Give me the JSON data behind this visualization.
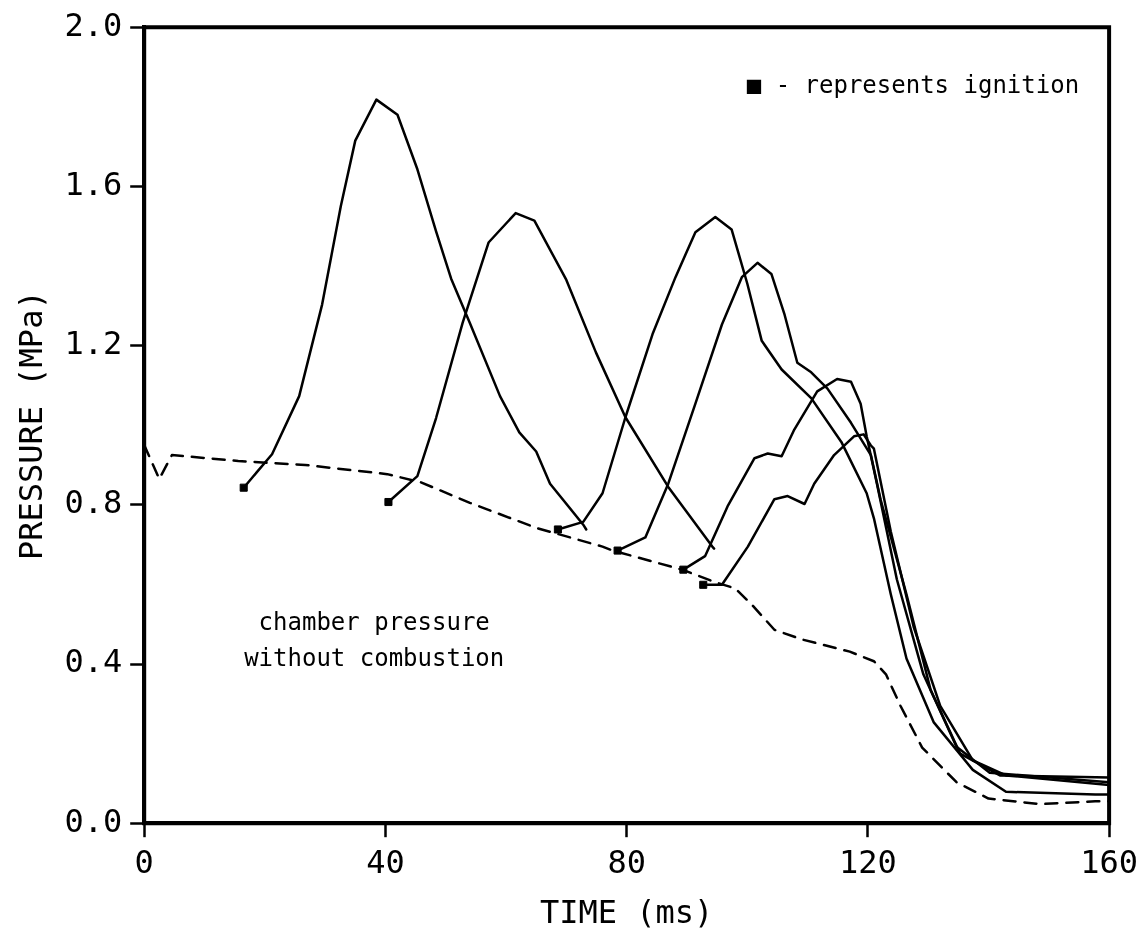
{
  "chart_data": {
    "type": "line",
    "xlabel": "TIME (ms)",
    "ylabel": "PRESSURE (MPa)",
    "xlim": [
      0,
      160
    ],
    "xticks": [
      0,
      40,
      80,
      120,
      160
    ],
    "ylim": [
      0,
      2.0
    ],
    "yticks": [
      {
        "value": 0,
        "label": "0.0"
      },
      {
        "value": 0.4,
        "label": "0.4"
      },
      {
        "value": 0.8,
        "label": "0.8"
      },
      {
        "value": 1.2,
        "label": "1.2"
      },
      {
        "value": 1.6,
        "label": "1.6"
      },
      {
        "value": 2.0,
        "label": "2.0"
      }
    ],
    "grid": false,
    "legend": false,
    "marker": "none",
    "annotations": [
      "■ - represents ignition",
      "chamber pressure\nwithout combustion"
    ],
    "series": [
      {
        "type": "line",
        "color": "#000000",
        "line_style": "dashed",
        "x": [
          0,
          2.5,
          4.6,
          15.6,
          26.7,
          40.3,
          45.8,
          54,
          65,
          76,
          77.7,
          89.2,
          94.6,
          98,
          100.7,
          104.5,
          109,
          117,
          121,
          123,
          125.4,
          129,
          134.7,
          140,
          148.5,
          157.7,
          160
        ],
        "values": [
          0.95,
          0.865,
          0.925,
          0.91,
          0.9,
          0.877,
          0.857,
          0.805,
          0.742,
          0.695,
          0.685,
          0.637,
          0.606,
          0.59,
          0.55,
          0.486,
          0.462,
          0.431,
          0.407,
          0.374,
          0.295,
          0.19,
          0.103,
          0.062,
          0.048,
          0.055,
          0.055
        ]
      },
      {
        "type": "line",
        "color": "#000000",
        "line_style": "solid",
        "x": [
          16.5,
          21.2,
          25.7,
          29.5,
          32.6,
          35,
          38.5,
          42,
          45.3,
          48.4,
          50.9,
          54,
          59,
          62.2,
          65,
          67.3,
          72.8,
          73.3
        ],
        "values": [
          0.843,
          0.927,
          1.073,
          1.303,
          1.55,
          1.715,
          1.818,
          1.78,
          1.643,
          1.487,
          1.368,
          1.257,
          1.073,
          0.982,
          0.934,
          0.853,
          0.75,
          0.738
        ]
      },
      {
        "type": "line",
        "color": "#000000",
        "line_style": "solid",
        "x": [
          40.5,
          45.3,
          48.4,
          52.8,
          57.1,
          61.6,
          64.7,
          70,
          74.9,
          79.8,
          86.9,
          94.2,
          94.5
        ],
        "values": [
          0.807,
          0.872,
          1.018,
          1.257,
          1.459,
          1.533,
          1.514,
          1.365,
          1.183,
          1.02,
          0.845,
          0.695,
          0.69
        ]
      },
      {
        "type": "line",
        "color": "#000000",
        "line_style": "solid",
        "x": [
          68.6,
          72.8,
          76,
          79.8,
          84.3,
          88.1,
          91.4,
          94.7,
          97.4,
          100,
          102.4,
          105.7,
          110.6,
          115.6,
          119.8,
          121,
          123.8,
          126.4,
          130.9,
          137.4,
          142.9,
          157.7,
          160
        ],
        "values": [
          0.738,
          0.757,
          0.829,
          1.02,
          1.229,
          1.372,
          1.485,
          1.523,
          1.492,
          1.356,
          1.212,
          1.14,
          1.068,
          0.958,
          0.829,
          0.766,
          0.575,
          0.414,
          0.254,
          0.134,
          0.079,
          0.072,
          0.072
        ]
      },
      {
        "type": "line",
        "color": "#000000",
        "line_style": "solid",
        "x": [
          78.5,
          83.1,
          86.9,
          91.4,
          95.8,
          99.1,
          101.7,
          104,
          106.2,
          108.3,
          110.6,
          113.3,
          117.2,
          120.5,
          122.1,
          126.4,
          130.4,
          135.3,
          141.9,
          160
        ],
        "values": [
          0.685,
          0.718,
          0.853,
          1.054,
          1.253,
          1.372,
          1.408,
          1.38,
          1.277,
          1.157,
          1.133,
          1.092,
          1.006,
          0.925,
          0.814,
          0.575,
          0.335,
          0.175,
          0.12,
          0.115
        ]
      },
      {
        "type": "line",
        "color": "#000000",
        "line_style": "solid",
        "x": [
          89.4,
          93,
          96.8,
          101.2,
          103.4,
          105.7,
          107.8,
          111.6,
          114.9,
          117.2,
          118.8,
          119.8,
          121.5,
          124.8,
          129.2,
          134.7,
          140.2,
          160
        ],
        "values": [
          0.637,
          0.671,
          0.798,
          0.917,
          0.929,
          0.922,
          0.989,
          1.085,
          1.116,
          1.109,
          1.054,
          0.972,
          0.853,
          0.613,
          0.374,
          0.192,
          0.127,
          0.103
        ]
      },
      {
        "type": "line",
        "color": "#000000",
        "line_style": "solid",
        "x": [
          92.7,
          95.8,
          100.1,
          104.5,
          106.7,
          109.5,
          111.1,
          114.4,
          117.7,
          119.3,
          120.5,
          121,
          123.8,
          127.6,
          132,
          137.4,
          142.9,
          160
        ],
        "values": [
          0.599,
          0.599,
          0.695,
          0.814,
          0.822,
          0.802,
          0.853,
          0.925,
          0.972,
          0.977,
          0.949,
          0.941,
          0.733,
          0.493,
          0.295,
          0.158,
          0.12,
          0.096
        ]
      },
      {
        "type": "scatter",
        "color": "#000000",
        "marker": "square",
        "x": [
          16.5,
          40.5,
          68.6,
          78.5,
          89.4,
          92.7
        ],
        "values": [
          0.843,
          0.807,
          0.738,
          0.685,
          0.637,
          0.599
        ]
      }
    ]
  }
}
